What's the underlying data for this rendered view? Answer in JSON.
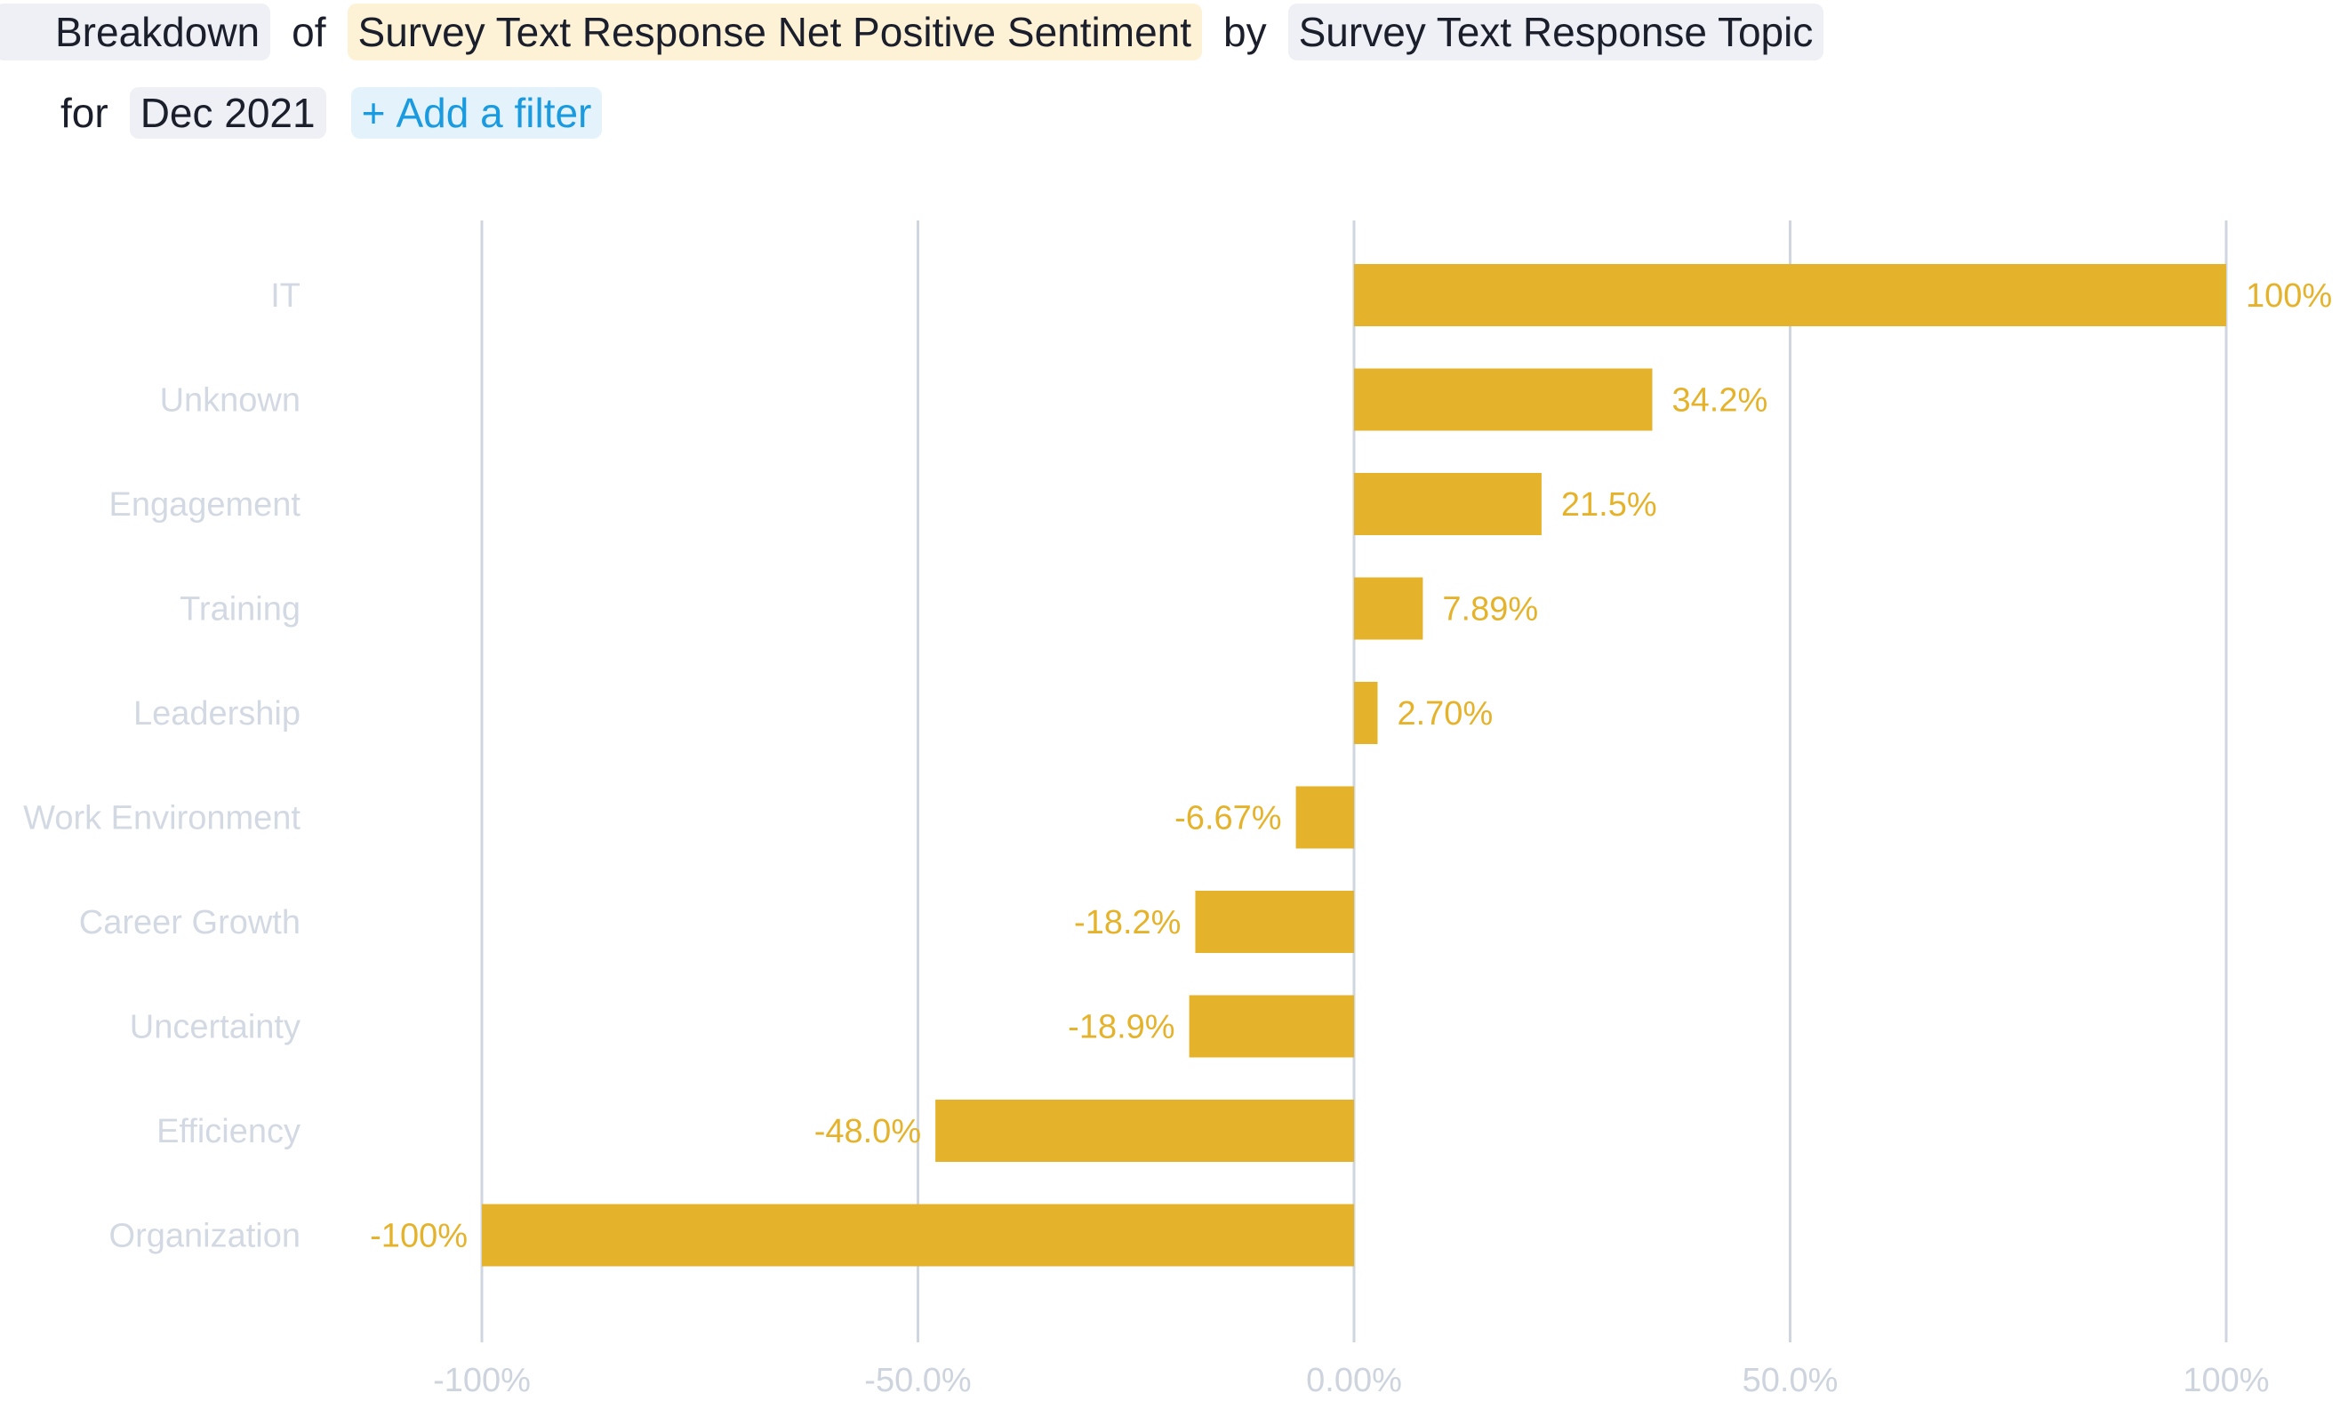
{
  "query": {
    "breakdown_word": "Breakdown",
    "of_word": "of",
    "metric": "Survey Text Response Net Positive Sentiment",
    "by_word": "by",
    "dimension": "Survey Text Response Topic",
    "for_word": "for",
    "period": "Dec 2021",
    "add_filter_icon": "+",
    "add_filter_label": "Add a filter"
  },
  "colors": {
    "bar": "#e5b32b",
    "value_label": "#e5b32b",
    "category_label": "#d3d9e3",
    "gridline": "#cfd6df",
    "add_filter_blue": "#1a9be0",
    "metric_pill": "#fdf1d6",
    "gray_pill": "#eef0f5"
  },
  "chart_data": {
    "type": "bar",
    "orientation": "horizontal",
    "categories": [
      "IT",
      "Unknown",
      "Engagement",
      "Training",
      "Leadership",
      "Work Environment",
      "Career Growth",
      "Uncertainty",
      "Efficiency",
      "Organization"
    ],
    "values": [
      100,
      34.2,
      21.5,
      7.89,
      2.7,
      -6.67,
      -18.2,
      -18.9,
      -48.0,
      -100
    ],
    "value_labels": [
      "100%",
      "34.2%",
      "21.5%",
      "7.89%",
      "2.70%",
      "-6.67%",
      "-18.2%",
      "-18.9%",
      "-48.0%",
      "-100%"
    ],
    "x_ticks": [
      -100,
      -50,
      0,
      50,
      100
    ],
    "x_tick_labels": [
      "-100%",
      "-50.0%",
      "0.00%",
      "50.0%",
      "100%"
    ],
    "xlim": [
      -100,
      100
    ],
    "grid": true,
    "legend": "none"
  }
}
